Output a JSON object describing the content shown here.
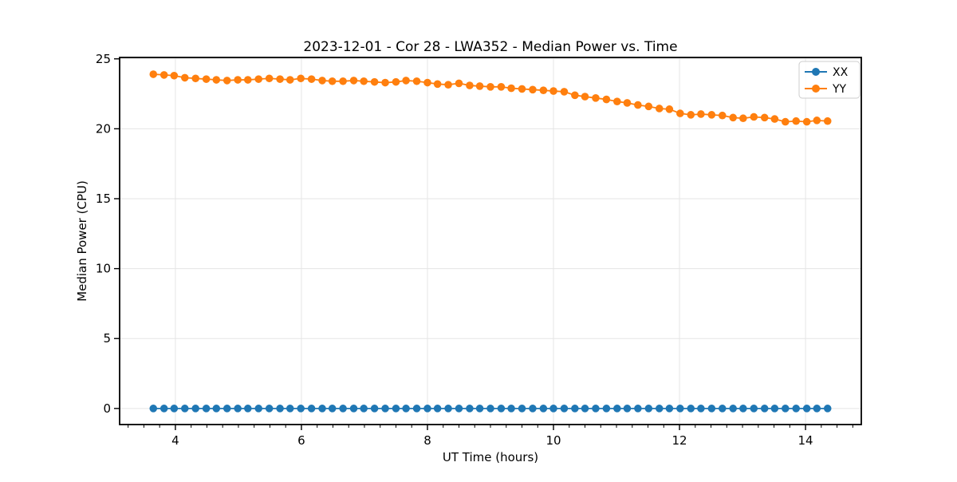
{
  "chart_data": {
    "type": "line",
    "title": "2023-12-01 - Cor 28 - LWA352 - Median Power vs. Time",
    "xlabel": "UT Time (hours)",
    "ylabel": "Median Power (CPU)",
    "xlim": [
      3.115,
      14.885
    ],
    "ylim": [
      -1.15,
      25.1
    ],
    "xticks": [
      4,
      6,
      8,
      10,
      12,
      14
    ],
    "yticks": [
      0,
      5,
      10,
      15,
      20,
      25
    ],
    "x_minor_tick_step": 0.25,
    "grid": true,
    "grid_color": "#e5e5e5",
    "background_color": "#ffffff",
    "legend_position": "upper right",
    "x": [
      3.65,
      3.82,
      3.98,
      4.15,
      4.32,
      4.49,
      4.65,
      4.82,
      4.99,
      5.15,
      5.32,
      5.49,
      5.66,
      5.82,
      5.99,
      6.16,
      6.33,
      6.49,
      6.66,
      6.83,
      6.99,
      7.16,
      7.33,
      7.5,
      7.66,
      7.83,
      8.0,
      8.16,
      8.33,
      8.5,
      8.67,
      8.83,
      9.0,
      9.17,
      9.33,
      9.5,
      9.67,
      9.84,
      10.0,
      10.17,
      10.34,
      10.5,
      10.67,
      10.84,
      11.01,
      11.17,
      11.34,
      11.51,
      11.68,
      11.84,
      12.01,
      12.18,
      12.34,
      12.51,
      12.68,
      12.85,
      13.01,
      13.18,
      13.35,
      13.51,
      13.68,
      13.85,
      14.02,
      14.18,
      14.35
    ],
    "series": [
      {
        "name": "XX",
        "color": "#1f77b4",
        "values": [
          0.0,
          0.0,
          0.0,
          0.0,
          0.0,
          0.0,
          0.0,
          0.0,
          0.0,
          0.0,
          0.0,
          0.0,
          0.0,
          0.0,
          0.0,
          0.0,
          0.0,
          0.0,
          0.0,
          0.0,
          0.0,
          0.0,
          0.0,
          0.0,
          0.0,
          0.0,
          0.0,
          0.0,
          0.0,
          0.0,
          0.0,
          0.0,
          0.0,
          0.0,
          0.0,
          0.0,
          0.0,
          0.0,
          0.0,
          0.0,
          0.0,
          0.0,
          0.0,
          0.0,
          0.0,
          0.0,
          0.0,
          0.0,
          0.0,
          0.0,
          0.0,
          0.0,
          0.0,
          0.0,
          0.0,
          0.0,
          0.0,
          0.0,
          0.0,
          0.0,
          0.0,
          0.0,
          0.0,
          0.0,
          0.0
        ]
      },
      {
        "name": "YY",
        "color": "#ff7f0e",
        "values": [
          23.9,
          23.85,
          23.8,
          23.65,
          23.6,
          23.55,
          23.5,
          23.45,
          23.5,
          23.5,
          23.55,
          23.6,
          23.55,
          23.5,
          23.6,
          23.55,
          23.45,
          23.4,
          23.4,
          23.45,
          23.4,
          23.35,
          23.3,
          23.35,
          23.45,
          23.4,
          23.3,
          23.2,
          23.15,
          23.25,
          23.1,
          23.05,
          23.0,
          23.0,
          22.9,
          22.85,
          22.8,
          22.75,
          22.7,
          22.65,
          22.4,
          22.3,
          22.2,
          22.1,
          21.95,
          21.85,
          21.7,
          21.6,
          21.45,
          21.4,
          21.1,
          21.0,
          21.05,
          21.0,
          20.95,
          20.8,
          20.75,
          20.85,
          20.8,
          20.7,
          20.5,
          20.55,
          20.5,
          20.6,
          20.55
        ]
      }
    ]
  }
}
